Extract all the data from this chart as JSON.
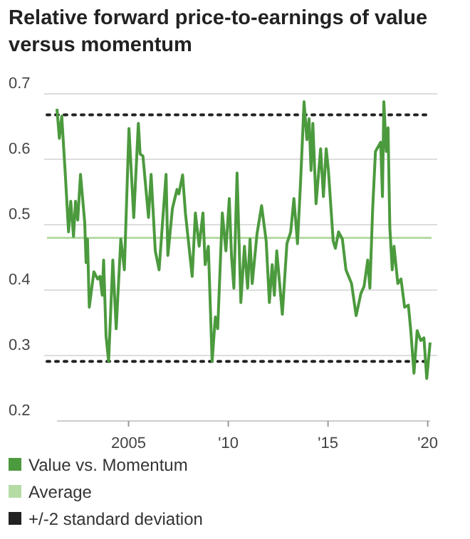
{
  "chart_data": {
    "type": "line",
    "title": "Relative forward price-to-earnings of value versus momentum",
    "x": [
      2001.41,
      2001.53,
      2001.65,
      2001.83,
      2001.99,
      2002.1,
      2002.24,
      2002.34,
      2002.45,
      2002.59,
      2002.8,
      2002.87,
      2002.94,
      2003.03,
      2003.26,
      2003.45,
      2003.57,
      2003.68,
      2003.75,
      2003.87,
      2004.0,
      2004.21,
      2004.38,
      2004.61,
      2004.79,
      2005.02,
      2005.26,
      2005.49,
      2005.58,
      2005.72,
      2006.0,
      2006.13,
      2006.34,
      2006.53,
      2006.88,
      2006.97,
      2007.2,
      2007.43,
      2007.52,
      2007.71,
      2007.85,
      2008.19,
      2008.35,
      2008.54,
      2008.73,
      2008.84,
      2009.0,
      2009.19,
      2009.35,
      2009.47,
      2009.7,
      2009.88,
      2010.05,
      2010.16,
      2010.28,
      2010.44,
      2010.63,
      2010.81,
      2010.97,
      2011.09,
      2011.2,
      2011.44,
      2011.67,
      2011.9,
      2012.06,
      2012.2,
      2012.31,
      2012.43,
      2012.71,
      2012.94,
      2013.13,
      2013.29,
      2013.47,
      2013.63,
      2013.8,
      2013.94,
      2014.05,
      2014.15,
      2014.24,
      2014.4,
      2014.63,
      2014.77,
      2014.91,
      2015.02,
      2015.26,
      2015.37,
      2015.53,
      2015.72,
      2015.9,
      2016.18,
      2016.41,
      2016.65,
      2016.81,
      2016.99,
      2017.1,
      2017.24,
      2017.38,
      2017.64,
      2017.73,
      2017.8,
      2017.92,
      2018.01,
      2018.1,
      2018.22,
      2018.31,
      2018.5,
      2018.66,
      2018.84,
      2019.03,
      2019.15,
      2019.31,
      2019.47,
      2019.65,
      2019.81,
      2019.95,
      2020.12
    ],
    "series": [
      {
        "name": "Value vs. Momentum",
        "color": "#4c9a3e",
        "values": [
          0.677,
          0.632,
          0.666,
          0.576,
          0.489,
          0.536,
          0.482,
          0.536,
          0.507,
          0.577,
          0.504,
          0.442,
          0.478,
          0.374,
          0.428,
          0.417,
          0.421,
          0.392,
          0.446,
          0.33,
          0.291,
          0.446,
          0.341,
          0.478,
          0.431,
          0.647,
          0.511,
          0.655,
          0.608,
          0.605,
          0.511,
          0.577,
          0.46,
          0.431,
          0.577,
          0.453,
          0.525,
          0.554,
          0.547,
          0.576,
          0.518,
          0.421,
          0.518,
          0.467,
          0.518,
          0.439,
          0.467,
          0.291,
          0.359,
          0.341,
          0.518,
          0.46,
          0.54,
          0.453,
          0.403,
          0.579,
          0.381,
          0.467,
          0.403,
          0.478,
          0.41,
          0.486,
          0.529,
          0.475,
          0.381,
          0.439,
          0.392,
          0.46,
          0.363,
          0.471,
          0.489,
          0.54,
          0.471,
          0.569,
          0.688,
          0.63,
          0.662,
          0.583,
          0.655,
          0.532,
          0.616,
          0.543,
          0.616,
          0.583,
          0.475,
          0.464,
          0.489,
          0.478,
          0.431,
          0.41,
          0.361,
          0.395,
          0.406,
          0.446,
          0.403,
          0.525,
          0.612,
          0.626,
          0.543,
          0.688,
          0.612,
          0.648,
          0.496,
          0.431,
          0.467,
          0.41,
          0.417,
          0.374,
          0.377,
          0.338,
          0.273,
          0.338,
          0.323,
          0.327,
          0.265,
          0.32
        ]
      }
    ],
    "ref_lines": [
      {
        "axis": "y",
        "value": 0.48,
        "label": "Average",
        "color": "#b5dba5",
        "line_style": "solid"
      },
      {
        "axis": "y",
        "value": 0.668,
        "label": "+/-2 standard deviation",
        "color": "#222222",
        "line_style": "dotted"
      },
      {
        "axis": "y",
        "value": 0.291,
        "color": "#222222",
        "line_style": "dotted"
      }
    ],
    "xlim": [
      2001.41,
      2020.12
    ],
    "xticks": [
      2005,
      {
        "value": 2010,
        "label": "'10"
      },
      {
        "value": 2015,
        "label": "'15"
      },
      {
        "value": 2020,
        "label": "'20"
      }
    ],
    "ylim": [
      0.2,
      0.7
    ],
    "yticks": [
      0.2,
      0.3,
      0.4,
      0.5,
      0.6,
      0.7
    ],
    "grid": "y",
    "legend": "bottom",
    "marker": "none",
    "line_style": "solid"
  }
}
